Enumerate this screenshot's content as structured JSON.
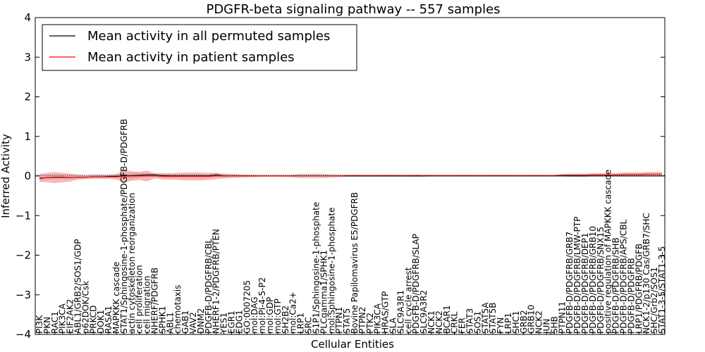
{
  "chart_data": {
    "type": "line",
    "title": "PDGFR-beta signaling pathway -- 557 samples",
    "xlabel": "Cellular Entities",
    "ylabel": "Inferred Activity",
    "ylim": [
      -4,
      4
    ],
    "yticks": [
      -4,
      -3,
      -2,
      -1,
      0,
      1,
      2,
      3,
      4
    ],
    "ytick_labels": [
      "−4",
      "−3",
      "−2",
      "−1",
      "0",
      "1",
      "2",
      "3",
      "4"
    ],
    "grid": false,
    "legend_position": "top-left",
    "categories": [
      "PI3K",
      "PKN",
      "RAC1",
      "PIK3CA",
      "EIF2AK2",
      "ABL1/GRB2/SOS1/GDP",
      "p62DOK/Csk",
      "PRKCD",
      "DOK1",
      "RASA1",
      "MAPKKK cascade",
      "STAT1/Sphingosine-1-phosphate/PDGFB-D/PDGFRB",
      "actin cytoskeleton reorganization",
      "cell proliferation",
      "cell migration",
      "NHERF/PDGFRB",
      "SPHK1",
      "ABL1",
      "chemotaxis",
      "GAB1",
      "VAV2",
      "DNM2",
      "PDGFB-D/PDGFRB/CBL",
      "NHERF1-2/PDGFRB/PTEN",
      "YES1",
      "EGR1",
      "EDG1",
      "GO:0007205",
      "mol:DAG",
      "mol:PI-4-5-P2",
      "mol:GDP",
      "mol:GTP",
      "SH2B2",
      "mol:Ca2+",
      "LRP1",
      "SRC",
      "S1P1/Sphingosine-1-phosphate",
      "PLCgamma1/SPHK1",
      "mol:Sphingosine-1-phosphate",
      "PTPN1",
      "STAT5",
      "Bovine Papilomavirus E5/PDGFRB",
      "PTPN2",
      "PTK2",
      "PIK3CA",
      "HRAS/GTP",
      "SLA",
      "SLC9A3R1",
      "cell cycle arrest",
      "PDGFB-D/PDGFRB/SLAP",
      "SLC9A3R2",
      "NCK1",
      "NCK2",
      "BCAR1",
      "CRKL",
      "FER",
      "STAT3",
      "SOS1",
      "STAT5A",
      "STAT5B",
      "FYN",
      "LRP1",
      "SHC1",
      "GRB2",
      "GRB10",
      "NCK2",
      "JUN",
      "SHB",
      "PTPN11",
      "PDGFB-D/PDGFRB/GRB7",
      "PDGFB-D/PDGFRB/LMW-PTP",
      "PDGFB-D/PDGFRB/DEP1",
      "PDGFB-D/PDGFRB/GRB10",
      "PDGFB-D/PDGFRB/SNX15",
      "positive regulation of MAPKKK cascade",
      "PDGFB-D/PDGFRB/SHB",
      "PDGFB-D/PDGFRB/APS/CBL",
      "PDGFB-D/PDGFRB",
      "LRP1/PDGFRB/PDGFB",
      "NCK1-2/p130 Cas/GRB7/SHC",
      "SHC/Grb2/SOS1",
      "STAT1-3-5/STAT1-3-5"
    ],
    "series": [
      {
        "name": "Mean activity in all permuted samples",
        "color": "#000000",
        "values": [
          -0.06,
          -0.04,
          -0.03,
          -0.03,
          -0.04,
          -0.03,
          -0.03,
          -0.02,
          -0.02,
          -0.01,
          -0.01,
          0.0,
          0.01,
          0.02,
          0.03,
          0.03,
          0.01,
          0.0,
          0.0,
          0.0,
          0.0,
          0.0,
          0.0,
          0.03,
          0.0,
          0.0,
          0.0,
          0.0,
          0.0,
          0.0,
          0.0,
          0.0,
          0.0,
          0.0,
          0.0,
          0.0,
          0.0,
          0.0,
          0.0,
          0.0,
          0.0,
          0.0,
          0.0,
          0.0,
          0.0,
          0.0,
          0.0,
          0.0,
          0.0,
          0.0,
          0.0,
          0.0,
          0.0,
          0.0,
          0.0,
          0.0,
          0.0,
          0.0,
          0.0,
          0.0,
          0.0,
          0.0,
          0.0,
          0.0,
          0.0,
          0.0,
          0.0,
          0.0,
          0.0,
          0.0,
          0.0,
          0.0,
          0.0,
          0.0,
          0.0,
          0.0,
          0.0,
          0.0,
          0.0,
          0.0,
          0.0,
          0.0
        ],
        "spread": [
          0.05,
          0.05,
          0.05,
          0.04,
          0.04,
          0.03,
          0.03,
          0.03,
          0.03,
          0.03,
          0.03,
          0.06,
          0.08,
          0.07,
          0.05,
          0.05,
          0.05,
          0.05,
          0.05,
          0.05,
          0.05,
          0.05,
          0.05,
          0.05,
          0.04,
          0.03,
          0.03,
          0.03,
          0.02,
          0.02,
          0.02,
          0.02,
          0.02,
          0.04,
          0.06,
          0.06,
          0.06,
          0.06,
          0.04,
          0.03,
          0.02,
          0.02,
          0.02,
          0.02,
          0.02,
          0.02,
          0.02,
          0.02,
          0.02,
          0.02,
          0.02,
          0.01,
          0.01,
          0.01,
          0.01,
          0.01,
          0.01,
          0.01,
          0.01,
          0.01,
          0.01,
          0.01,
          0.01,
          0.01,
          0.01,
          0.01,
          0.01,
          0.01,
          0.01,
          0.01,
          0.01,
          0.01,
          0.01,
          0.01,
          0.01,
          0.01,
          0.01,
          0.01,
          0.01,
          0.01,
          0.01,
          0.01
        ]
      },
      {
        "name": "Mean activity in patient samples",
        "color": "#ff0000",
        "values": [
          -0.05,
          -0.04,
          -0.04,
          -0.04,
          -0.04,
          -0.03,
          -0.03,
          -0.02,
          -0.02,
          -0.02,
          -0.02,
          -0.01,
          0.0,
          0.0,
          0.0,
          0.0,
          -0.01,
          -0.01,
          -0.01,
          -0.01,
          -0.01,
          -0.01,
          -0.01,
          0.0,
          0.0,
          0.0,
          0.0,
          0.0,
          0.0,
          0.0,
          0.0,
          0.0,
          0.0,
          0.0,
          0.0,
          0.0,
          0.0,
          0.0,
          0.0,
          0.0,
          0.01,
          0.01,
          0.01,
          0.01,
          0.01,
          0.01,
          0.01,
          0.01,
          0.01,
          0.01,
          0.01,
          0.01,
          0.01,
          0.01,
          0.01,
          0.01,
          0.01,
          0.01,
          0.01,
          0.01,
          0.01,
          0.01,
          0.01,
          0.01,
          0.01,
          0.01,
          0.01,
          0.01,
          0.02,
          0.02,
          0.02,
          0.02,
          0.03,
          0.03,
          0.03,
          0.03,
          0.04,
          0.04,
          0.04,
          0.05,
          0.05,
          0.05
        ],
        "spread": [
          0.1,
          0.12,
          0.14,
          0.12,
          0.1,
          0.06,
          0.05,
          0.05,
          0.05,
          0.05,
          0.07,
          0.16,
          0.12,
          0.1,
          0.14,
          0.06,
          0.08,
          0.08,
          0.09,
          0.1,
          0.1,
          0.1,
          0.09,
          0.08,
          0.06,
          0.05,
          0.04,
          0.03,
          0.03,
          0.02,
          0.02,
          0.02,
          0.02,
          0.02,
          0.02,
          0.02,
          0.02,
          0.02,
          0.02,
          0.02,
          0.02,
          0.02,
          0.02,
          0.02,
          0.02,
          0.02,
          0.02,
          0.02,
          0.02,
          0.03,
          0.02,
          0.02,
          0.02,
          0.02,
          0.02,
          0.02,
          0.02,
          0.02,
          0.02,
          0.02,
          0.02,
          0.02,
          0.02,
          0.02,
          0.02,
          0.02,
          0.02,
          0.02,
          0.03,
          0.04,
          0.04,
          0.04,
          0.04,
          0.04,
          0.04,
          0.04,
          0.05,
          0.05,
          0.05,
          0.05,
          0.05,
          0.05
        ]
      }
    ]
  }
}
